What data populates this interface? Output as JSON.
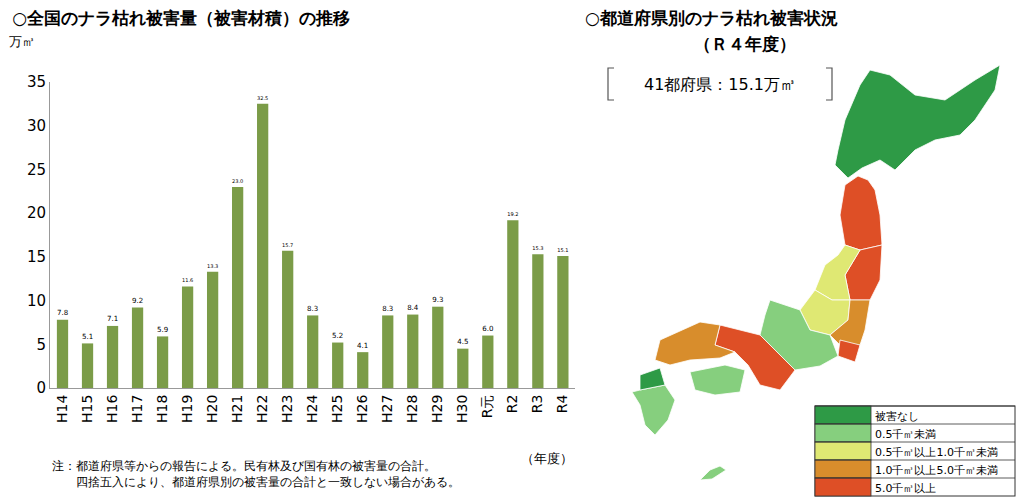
{
  "chart_data": {
    "type": "bar",
    "title": "○全国のナラ枯れ被害量（被害材積）の推移",
    "y_label": "万㎥",
    "x_label": "（年度）",
    "note": [
      "注：都道府県等からの報告による。民有林及び国有林の被害量の合計。",
      "　　四捨五入により、都道府県別の被害量の合計と一致しない場合がある。"
    ],
    "categories": [
      "H14",
      "H15",
      "H16",
      "H17",
      "H18",
      "H19",
      "H20",
      "H21",
      "H22",
      "H23",
      "H24",
      "H25",
      "H26",
      "H27",
      "H28",
      "H29",
      "H30",
      "R元",
      "R2",
      "R3",
      "R4"
    ],
    "values": [
      7.8,
      5.1,
      7.1,
      9.2,
      5.9,
      11.6,
      13.3,
      23.0,
      32.5,
      15.7,
      8.3,
      5.2,
      4.1,
      8.3,
      8.4,
      9.3,
      4.5,
      6.0,
      19.2,
      15.3,
      15.1
    ],
    "value_labels": [
      "7.8",
      "5.1",
      "7.1",
      "9.2",
      "5.9",
      "11.6",
      "13.3",
      "23.0",
      "32.5",
      "15.7",
      "8.3",
      "5.2",
      "4.1",
      "8.3",
      "8.4",
      "9.3",
      "4.5",
      "6.0",
      "19.2",
      "15.3",
      "15.1"
    ],
    "color": "#7b9c48",
    "ylim": [
      0,
      35
    ],
    "yticks": [
      0,
      5,
      10,
      15,
      20,
      25,
      30,
      35
    ],
    "grid": false,
    "data_labels": true
  },
  "map": {
    "title": "○都道府県別のナラ枯れ被害状況",
    "subtitle": "（Ｒ４年度）",
    "summary": "41都府県：15.1万㎥",
    "legend": [
      {
        "label": "被害なし",
        "color": "#2e9a46"
      },
      {
        "label": "0.5千㎥未満",
        "color": "#86cf7e"
      },
      {
        "label": "0.5千㎥以上1.0千㎥未満",
        "color": "#dfe873"
      },
      {
        "label": "1.0千㎥以上5.0千㎥未満",
        "color": "#d88d2c"
      },
      {
        "label": "5.0千㎥以上",
        "color": "#de4f26"
      }
    ],
    "regions": [
      {
        "class": 0
      },
      {
        "class": 4
      },
      {
        "class": 4
      },
      {
        "class": 2
      },
      {
        "class": 2
      },
      {
        "class": 3
      },
      {
        "class": 4
      },
      {
        "class": 1
      },
      {
        "class": 4
      },
      {
        "class": 3
      },
      {
        "class": 1
      },
      {
        "class": 1
      },
      {
        "class": 0
      },
      {
        "class": 1
      }
    ]
  }
}
